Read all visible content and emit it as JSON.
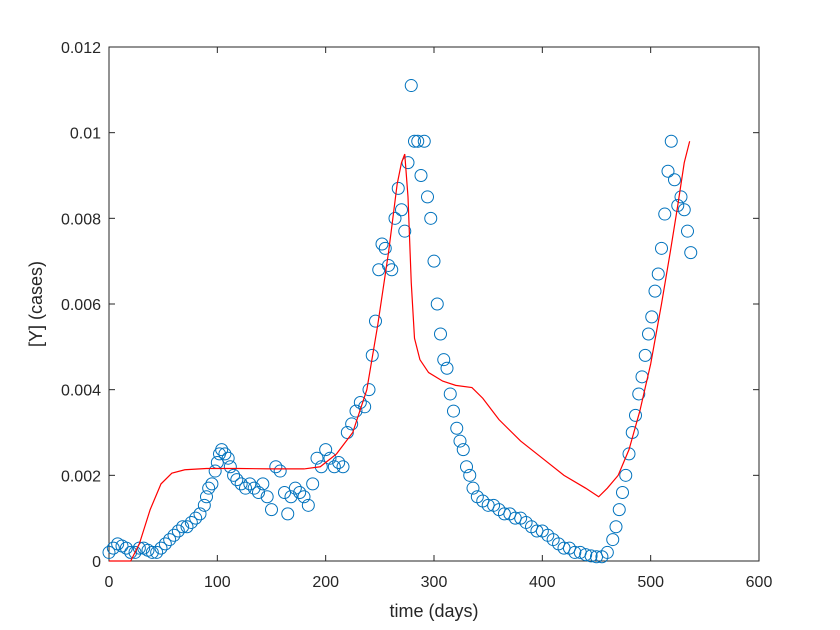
{
  "chart_data": {
    "type": "scatter",
    "title": "",
    "xlabel": "time (days)",
    "ylabel": "[Y] (cases)",
    "xlim": [
      0,
      600
    ],
    "ylim": [
      0,
      0.012
    ],
    "x_ticks": [
      0,
      100,
      200,
      300,
      400,
      500,
      600
    ],
    "x_tick_labels": [
      "0",
      "100",
      "200",
      "300",
      "400",
      "500",
      "600"
    ],
    "y_ticks": [
      0,
      0.002,
      0.004,
      0.006,
      0.008,
      0.01,
      0.012
    ],
    "y_tick_labels": [
      "0",
      "0.002",
      "0.004",
      "0.006",
      "0.008",
      "0.01",
      "0.012"
    ],
    "grid": false,
    "legend": "none",
    "series": [
      {
        "kind": "scatter",
        "marker": "open-circle",
        "color": "#0072BD",
        "points": [
          [
            0,
            0.0002
          ],
          [
            4,
            0.0003
          ],
          [
            8,
            0.0004
          ],
          [
            12,
            0.00035
          ],
          [
            16,
            0.0003
          ],
          [
            20,
            0.0002
          ],
          [
            24,
            0.0002
          ],
          [
            28,
            0.0003
          ],
          [
            32,
            0.0003
          ],
          [
            36,
            0.00025
          ],
          [
            40,
            0.0002
          ],
          [
            44,
            0.0002
          ],
          [
            48,
            0.0003
          ],
          [
            52,
            0.0004
          ],
          [
            56,
            0.0005
          ],
          [
            60,
            0.0006
          ],
          [
            64,
            0.0007
          ],
          [
            68,
            0.0008
          ],
          [
            72,
            0.0008
          ],
          [
            76,
            0.0009
          ],
          [
            80,
            0.001
          ],
          [
            84,
            0.0011
          ],
          [
            88,
            0.0013
          ],
          [
            90,
            0.0015
          ],
          [
            92,
            0.0017
          ],
          [
            95,
            0.0018
          ],
          [
            98,
            0.0021
          ],
          [
            100,
            0.0023
          ],
          [
            102,
            0.0025
          ],
          [
            104,
            0.0026
          ],
          [
            107,
            0.0025
          ],
          [
            110,
            0.0024
          ],
          [
            112,
            0.0022
          ],
          [
            115,
            0.002
          ],
          [
            118,
            0.0019
          ],
          [
            122,
            0.0018
          ],
          [
            126,
            0.0017
          ],
          [
            130,
            0.0018
          ],
          [
            134,
            0.0017
          ],
          [
            138,
            0.0016
          ],
          [
            142,
            0.0018
          ],
          [
            146,
            0.0015
          ],
          [
            150,
            0.0012
          ],
          [
            154,
            0.0022
          ],
          [
            158,
            0.0021
          ],
          [
            162,
            0.0016
          ],
          [
            165,
            0.0011
          ],
          [
            168,
            0.0015
          ],
          [
            172,
            0.0017
          ],
          [
            176,
            0.0016
          ],
          [
            180,
            0.0015
          ],
          [
            184,
            0.0013
          ],
          [
            188,
            0.0018
          ],
          [
            192,
            0.0024
          ],
          [
            196,
            0.0022
          ],
          [
            200,
            0.0026
          ],
          [
            204,
            0.0024
          ],
          [
            208,
            0.0022
          ],
          [
            212,
            0.0023
          ],
          [
            216,
            0.0022
          ],
          [
            220,
            0.003
          ],
          [
            224,
            0.0032
          ],
          [
            228,
            0.0035
          ],
          [
            232,
            0.0037
          ],
          [
            236,
            0.0036
          ],
          [
            240,
            0.004
          ],
          [
            243,
            0.0048
          ],
          [
            246,
            0.0056
          ],
          [
            249,
            0.0068
          ],
          [
            252,
            0.0074
          ],
          [
            255,
            0.0073
          ],
          [
            258,
            0.0069
          ],
          [
            261,
            0.0068
          ],
          [
            264,
            0.008
          ],
          [
            267,
            0.0087
          ],
          [
            270,
            0.0082
          ],
          [
            273,
            0.0077
          ],
          [
            276,
            0.0093
          ],
          [
            279,
            0.0111
          ],
          [
            282,
            0.0098
          ],
          [
            285,
            0.0098
          ],
          [
            288,
            0.009
          ],
          [
            291,
            0.0098
          ],
          [
            294,
            0.0085
          ],
          [
            297,
            0.008
          ],
          [
            300,
            0.007
          ],
          [
            303,
            0.006
          ],
          [
            306,
            0.0053
          ],
          [
            309,
            0.0047
          ],
          [
            312,
            0.0045
          ],
          [
            315,
            0.0039
          ],
          [
            318,
            0.0035
          ],
          [
            321,
            0.0031
          ],
          [
            324,
            0.0028
          ],
          [
            327,
            0.0026
          ],
          [
            330,
            0.0022
          ],
          [
            333,
            0.002
          ],
          [
            336,
            0.0017
          ],
          [
            340,
            0.0015
          ],
          [
            345,
            0.0014
          ],
          [
            350,
            0.0013
          ],
          [
            355,
            0.0013
          ],
          [
            360,
            0.0012
          ],
          [
            365,
            0.0011
          ],
          [
            370,
            0.0011
          ],
          [
            375,
            0.001
          ],
          [
            380,
            0.001
          ],
          [
            385,
            0.0009
          ],
          [
            390,
            0.0008
          ],
          [
            395,
            0.0007
          ],
          [
            400,
            0.0007
          ],
          [
            405,
            0.0006
          ],
          [
            410,
            0.0005
          ],
          [
            415,
            0.0004
          ],
          [
            420,
            0.0003
          ],
          [
            425,
            0.0003
          ],
          [
            430,
            0.0002
          ],
          [
            435,
            0.0002
          ],
          [
            440,
            0.00015
          ],
          [
            445,
            0.00012
          ],
          [
            450,
            0.0001
          ],
          [
            455,
            0.0001
          ],
          [
            460,
            0.0002
          ],
          [
            465,
            0.0005
          ],
          [
            468,
            0.0008
          ],
          [
            471,
            0.0012
          ],
          [
            474,
            0.0016
          ],
          [
            477,
            0.002
          ],
          [
            480,
            0.0025
          ],
          [
            483,
            0.003
          ],
          [
            486,
            0.0034
          ],
          [
            489,
            0.0039
          ],
          [
            492,
            0.0043
          ],
          [
            495,
            0.0048
          ],
          [
            498,
            0.0053
          ],
          [
            501,
            0.0057
          ],
          [
            504,
            0.0063
          ],
          [
            507,
            0.0067
          ],
          [
            510,
            0.0073
          ],
          [
            513,
            0.0081
          ],
          [
            516,
            0.0091
          ],
          [
            519,
            0.0098
          ],
          [
            522,
            0.0089
          ],
          [
            525,
            0.0083
          ],
          [
            528,
            0.0085
          ],
          [
            531,
            0.0082
          ],
          [
            534,
            0.0077
          ],
          [
            537,
            0.0072
          ]
        ]
      },
      {
        "kind": "line",
        "color": "#FF0000",
        "points": [
          [
            0,
            0.0
          ],
          [
            20,
            0.0
          ],
          [
            28,
            0.0004
          ],
          [
            38,
            0.0012
          ],
          [
            48,
            0.0018
          ],
          [
            58,
            0.00205
          ],
          [
            70,
            0.00213
          ],
          [
            90,
            0.00216
          ],
          [
            120,
            0.00216
          ],
          [
            150,
            0.00215
          ],
          [
            180,
            0.00215
          ],
          [
            195,
            0.0022
          ],
          [
            210,
            0.0025
          ],
          [
            225,
            0.003
          ],
          [
            238,
            0.004
          ],
          [
            248,
            0.0055
          ],
          [
            258,
            0.0072
          ],
          [
            266,
            0.0088
          ],
          [
            270,
            0.0093
          ],
          [
            273,
            0.0095
          ],
          [
            276,
            0.0085
          ],
          [
            279,
            0.0065
          ],
          [
            282,
            0.0052
          ],
          [
            287,
            0.0047
          ],
          [
            295,
            0.0044
          ],
          [
            308,
            0.0042
          ],
          [
            320,
            0.0041
          ],
          [
            335,
            0.00405
          ],
          [
            345,
            0.0038
          ],
          [
            360,
            0.0033
          ],
          [
            380,
            0.0028
          ],
          [
            400,
            0.0024
          ],
          [
            420,
            0.002
          ],
          [
            440,
            0.0017
          ],
          [
            452,
            0.0015
          ],
          [
            460,
            0.0017
          ],
          [
            470,
            0.002
          ],
          [
            480,
            0.0026
          ],
          [
            490,
            0.0035
          ],
          [
            500,
            0.0046
          ],
          [
            510,
            0.006
          ],
          [
            518,
            0.0072
          ],
          [
            525,
            0.0083
          ],
          [
            531,
            0.0093
          ],
          [
            536,
            0.0098
          ]
        ]
      }
    ]
  }
}
